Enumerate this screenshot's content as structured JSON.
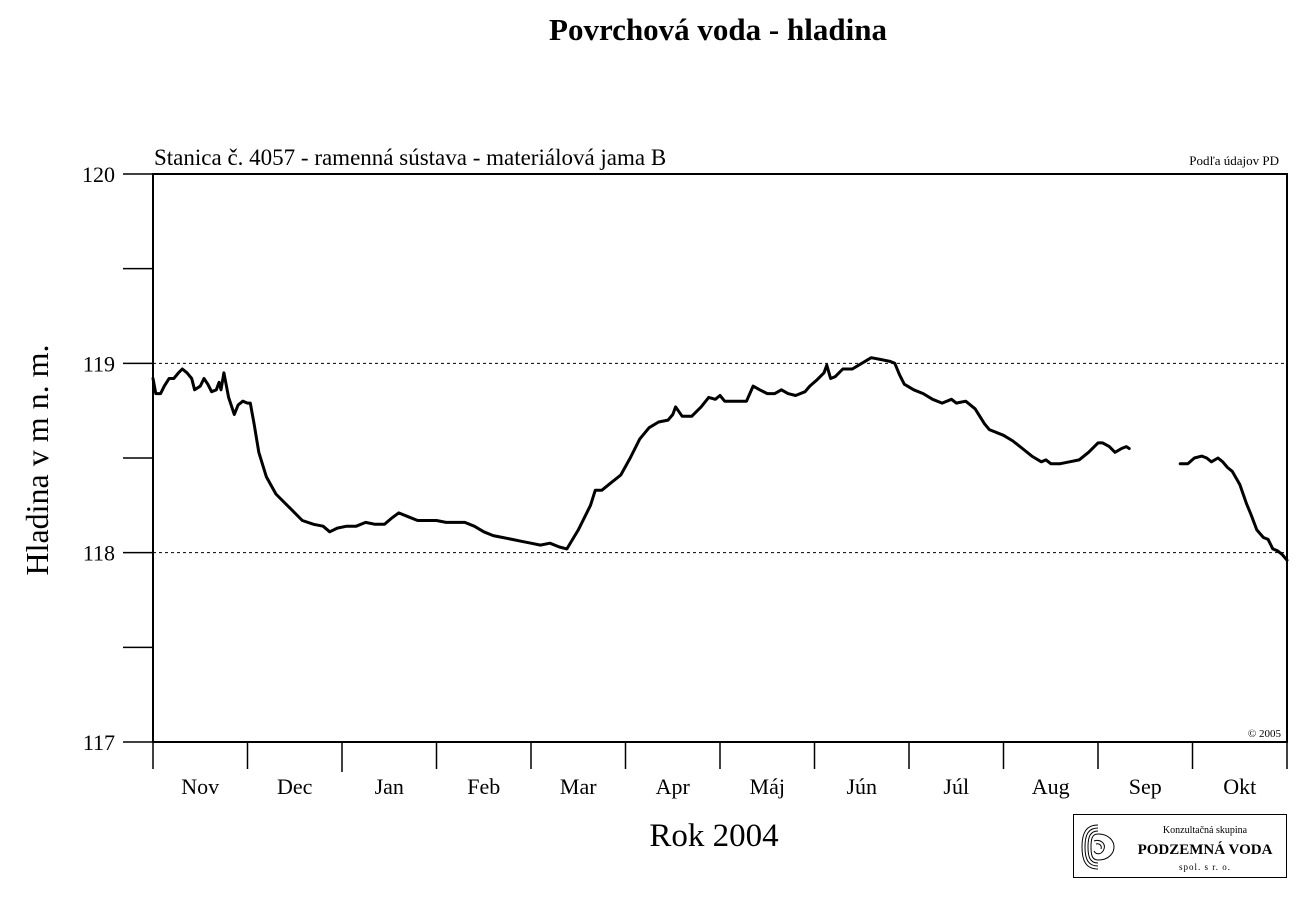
{
  "title": "Povrchová voda - hladina",
  "logo": {
    "line1": "Konzultačná skupina",
    "line2": "PODZEMNÁ VODA",
    "line3": "spol. s r. o."
  },
  "chart_data": {
    "type": "line",
    "title": "Povrchová voda - hladina",
    "subtitle": "Stanica č. 4057 - ramenná sústava - materiálová jama B",
    "source_note": "Podľa údajov PD",
    "copyright": "© 2005",
    "xlabel": "Rok 2004",
    "ylabel": "Hladina v m n. m.",
    "ylim": [
      117,
      120
    ],
    "yticks": [
      117,
      118,
      119,
      120
    ],
    "grid_lines": [
      118,
      119
    ],
    "months": [
      "Nov",
      "Dec",
      "Jan",
      "Feb",
      "Mar",
      "Apr",
      "Máj",
      "Jún",
      "Júl",
      "Aug",
      "Sep",
      "Okt"
    ],
    "x_unit": "months since start of Nov",
    "xlim": [
      0,
      12
    ],
    "series": [
      {
        "segments": [
          [
            [
              0.0,
              118.92
            ],
            [
              0.03,
              118.84
            ],
            [
              0.08,
              118.84
            ],
            [
              0.12,
              118.88
            ],
            [
              0.17,
              118.92
            ],
            [
              0.22,
              118.92
            ],
            [
              0.27,
              118.95
            ],
            [
              0.31,
              118.97
            ],
            [
              0.36,
              118.95
            ],
            [
              0.41,
              118.92
            ],
            [
              0.44,
              118.86
            ],
            [
              0.5,
              118.88
            ],
            [
              0.54,
              118.92
            ],
            [
              0.58,
              118.89
            ],
            [
              0.62,
              118.85
            ],
            [
              0.67,
              118.86
            ],
            [
              0.7,
              118.9
            ],
            [
              0.72,
              118.86
            ],
            [
              0.75,
              118.95
            ],
            [
              0.8,
              118.82
            ],
            [
              0.86,
              118.73
            ],
            [
              0.9,
              118.78
            ],
            [
              0.95,
              118.8
            ],
            [
              1.0,
              118.79
            ],
            [
              1.03,
              118.79
            ],
            [
              1.07,
              118.68
            ],
            [
              1.12,
              118.53
            ],
            [
              1.2,
              118.4
            ],
            [
              1.3,
              118.31
            ],
            [
              1.4,
              118.26
            ],
            [
              1.5,
              118.21
            ],
            [
              1.58,
              118.17
            ],
            [
              1.7,
              118.15
            ],
            [
              1.8,
              118.14
            ],
            [
              1.87,
              118.11
            ],
            [
              1.95,
              118.13
            ],
            [
              2.05,
              118.14
            ],
            [
              2.15,
              118.14
            ],
            [
              2.25,
              118.16
            ],
            [
              2.35,
              118.15
            ],
            [
              2.45,
              118.15
            ],
            [
              2.52,
              118.18
            ],
            [
              2.6,
              118.21
            ],
            [
              2.7,
              118.19
            ],
            [
              2.8,
              118.17
            ],
            [
              2.9,
              118.17
            ],
            [
              3.0,
              118.17
            ],
            [
              3.1,
              118.16
            ],
            [
              3.2,
              118.16
            ],
            [
              3.3,
              118.16
            ],
            [
              3.4,
              118.14
            ],
            [
              3.5,
              118.11
            ],
            [
              3.6,
              118.09
            ],
            [
              3.7,
              118.08
            ],
            [
              3.8,
              118.07
            ],
            [
              3.9,
              118.06
            ],
            [
              4.0,
              118.05
            ],
            [
              4.1,
              118.04
            ],
            [
              4.2,
              118.05
            ],
            [
              4.3,
              118.03
            ],
            [
              4.38,
              118.02
            ],
            [
              4.5,
              118.12
            ],
            [
              4.63,
              118.25
            ],
            [
              4.68,
              118.33
            ],
            [
              4.75,
              118.33
            ],
            [
              4.85,
              118.37
            ],
            [
              4.95,
              118.41
            ],
            [
              5.05,
              118.5
            ],
            [
              5.15,
              118.6
            ],
            [
              5.25,
              118.66
            ],
            [
              5.35,
              118.69
            ],
            [
              5.45,
              118.7
            ],
            [
              5.5,
              118.73
            ],
            [
              5.53,
              118.77
            ],
            [
              5.6,
              118.72
            ],
            [
              5.7,
              118.72
            ],
            [
              5.8,
              118.77
            ],
            [
              5.88,
              118.82
            ],
            [
              5.95,
              118.81
            ],
            [
              6.0,
              118.83
            ],
            [
              6.05,
              118.8
            ],
            [
              6.12,
              118.8
            ],
            [
              6.2,
              118.8
            ],
            [
              6.28,
              118.8
            ],
            [
              6.35,
              118.88
            ],
            [
              6.42,
              118.86
            ],
            [
              6.5,
              118.84
            ],
            [
              6.58,
              118.84
            ],
            [
              6.65,
              118.86
            ],
            [
              6.72,
              118.84
            ],
            [
              6.8,
              118.83
            ],
            [
              6.9,
              118.85
            ],
            [
              6.95,
              118.88
            ],
            [
              7.02,
              118.91
            ],
            [
              7.1,
              118.95
            ],
            [
              7.13,
              118.99
            ],
            [
              7.17,
              118.92
            ],
            [
              7.22,
              118.93
            ],
            [
              7.3,
              118.97
            ],
            [
              7.4,
              118.97
            ],
            [
              7.5,
              119.0
            ],
            [
              7.6,
              119.03
            ],
            [
              7.7,
              119.02
            ],
            [
              7.8,
              119.01
            ],
            [
              7.85,
              119.0
            ],
            [
              7.9,
              118.94
            ],
            [
              7.95,
              118.89
            ],
            [
              8.05,
              118.86
            ],
            [
              8.15,
              118.84
            ],
            [
              8.25,
              118.81
            ],
            [
              8.35,
              118.79
            ],
            [
              8.45,
              118.81
            ],
            [
              8.5,
              118.79
            ],
            [
              8.6,
              118.8
            ],
            [
              8.7,
              118.76
            ],
            [
              8.8,
              118.68
            ],
            [
              8.85,
              118.65
            ],
            [
              9.0,
              118.62
            ],
            [
              9.1,
              118.59
            ],
            [
              9.2,
              118.55
            ],
            [
              9.3,
              118.51
            ],
            [
              9.4,
              118.48
            ],
            [
              9.45,
              118.49
            ],
            [
              9.5,
              118.47
            ],
            [
              9.6,
              118.47
            ],
            [
              9.7,
              118.48
            ],
            [
              9.8,
              118.49
            ],
            [
              9.9,
              118.53
            ],
            [
              10.0,
              118.58
            ],
            [
              10.05,
              118.58
            ],
            [
              10.12,
              118.56
            ],
            [
              10.18,
              118.53
            ],
            [
              10.25,
              118.55
            ],
            [
              10.3,
              118.56
            ],
            [
              10.33,
              118.55
            ]
          ],
          [
            [
              10.87,
              118.47
            ],
            [
              10.95,
              118.47
            ],
            [
              11.02,
              118.5
            ],
            [
              11.1,
              118.51
            ],
            [
              11.15,
              118.5
            ],
            [
              11.2,
              118.48
            ],
            [
              11.27,
              118.5
            ],
            [
              11.32,
              118.48
            ],
            [
              11.37,
              118.45
            ],
            [
              11.42,
              118.43
            ],
            [
              11.5,
              118.36
            ],
            [
              11.57,
              118.26
            ],
            [
              11.62,
              118.2
            ],
            [
              11.68,
              118.12
            ],
            [
              11.75,
              118.08
            ],
            [
              11.8,
              118.07
            ],
            [
              11.85,
              118.02
            ],
            [
              11.9,
              118.01
            ],
            [
              11.95,
              117.99
            ],
            [
              12.0,
              117.96
            ]
          ]
        ]
      }
    ]
  }
}
